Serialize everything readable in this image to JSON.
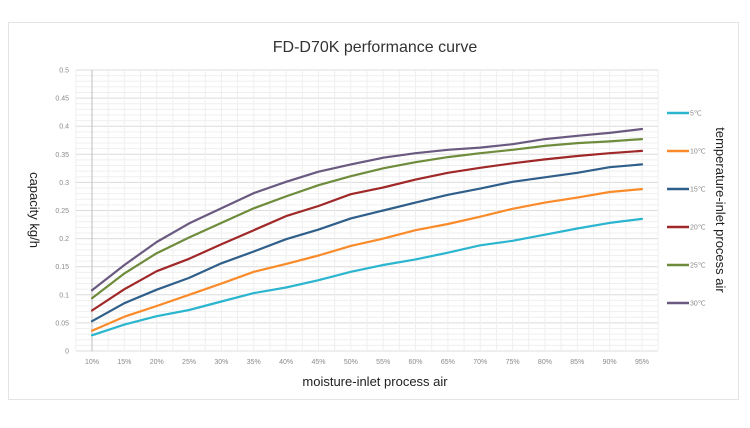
{
  "chart_data": {
    "type": "line",
    "title": "FD-D70K performance curve",
    "xlabel": "moisture-inlet process air",
    "ylabel": "capacity kg/h",
    "legend_title": "temperature-inlet process air",
    "legend_position": "right",
    "grid": true,
    "ylim": [
      0,
      0.5
    ],
    "yticks": [
      "0",
      "0.05",
      "0.1",
      "0.15",
      "0.2",
      "0.25",
      "0.3",
      "0.35",
      "0.4",
      "0.45",
      "0.5"
    ],
    "categories": [
      "10%",
      "15%",
      "20%",
      "25%",
      "30%",
      "35%",
      "40%",
      "45%",
      "50%",
      "55%",
      "60%",
      "65%",
      "70%",
      "75%",
      "80%",
      "85%",
      "90%",
      "95%"
    ],
    "series": [
      {
        "name": "5℃",
        "color": "#2bb5cf",
        "values": [
          0.028,
          0.047,
          0.062,
          0.073,
          0.088,
          0.103,
          0.113,
          0.126,
          0.141,
          0.153,
          0.163,
          0.175,
          0.188,
          0.196,
          0.207,
          0.218,
          0.228,
          0.235
        ]
      },
      {
        "name": "10℃",
        "color": "#f98b2a",
        "values": [
          0.036,
          0.061,
          0.08,
          0.1,
          0.12,
          0.141,
          0.155,
          0.17,
          0.187,
          0.2,
          0.215,
          0.226,
          0.239,
          0.253,
          0.264,
          0.273,
          0.283,
          0.288
        ]
      },
      {
        "name": "15℃",
        "color": "#2f5f8a",
        "values": [
          0.053,
          0.085,
          0.109,
          0.13,
          0.156,
          0.177,
          0.199,
          0.216,
          0.236,
          0.25,
          0.264,
          0.278,
          0.289,
          0.301,
          0.309,
          0.317,
          0.327,
          0.332
        ]
      },
      {
        "name": "20℃",
        "color": "#a02828",
        "values": [
          0.072,
          0.11,
          0.142,
          0.164,
          0.19,
          0.215,
          0.24,
          0.258,
          0.279,
          0.291,
          0.305,
          0.317,
          0.326,
          0.334,
          0.341,
          0.347,
          0.352,
          0.356
        ]
      },
      {
        "name": "25℃",
        "color": "#6e8c3c",
        "values": [
          0.094,
          0.138,
          0.174,
          0.202,
          0.228,
          0.254,
          0.275,
          0.295,
          0.311,
          0.325,
          0.336,
          0.345,
          0.352,
          0.358,
          0.365,
          0.37,
          0.373,
          0.377
        ]
      },
      {
        "name": "30℃",
        "color": "#6a5a80",
        "values": [
          0.108,
          0.153,
          0.194,
          0.227,
          0.254,
          0.281,
          0.301,
          0.319,
          0.332,
          0.344,
          0.352,
          0.358,
          0.362,
          0.368,
          0.377,
          0.383,
          0.388,
          0.395
        ]
      }
    ]
  }
}
